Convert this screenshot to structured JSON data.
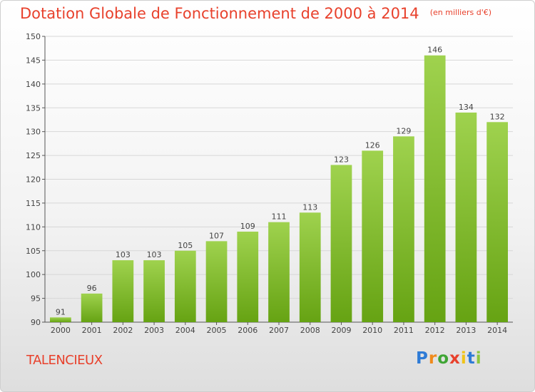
{
  "chart_data": {
    "type": "bar",
    "title": "Dotation Globale de Fonctionnement de 2000 à 2014",
    "unit_note": "(en milliers d'€)",
    "categories": [
      "2000",
      "2001",
      "2002",
      "2003",
      "2004",
      "2005",
      "2006",
      "2007",
      "2008",
      "2009",
      "2010",
      "2011",
      "2012",
      "2013",
      "2014"
    ],
    "values": [
      91,
      96,
      103,
      103,
      105,
      107,
      109,
      111,
      113,
      123,
      126,
      129,
      146,
      134,
      132
    ],
    "ylim": [
      90,
      150
    ],
    "yticks": [
      90,
      95,
      100,
      105,
      110,
      115,
      120,
      125,
      130,
      135,
      140,
      145,
      150
    ],
    "xlabel": "",
    "ylabel": "",
    "grid": true,
    "bar_color": "#8cc63f"
  },
  "footer": {
    "commune": "TALENCIEUX",
    "brand": "Proxiti"
  }
}
